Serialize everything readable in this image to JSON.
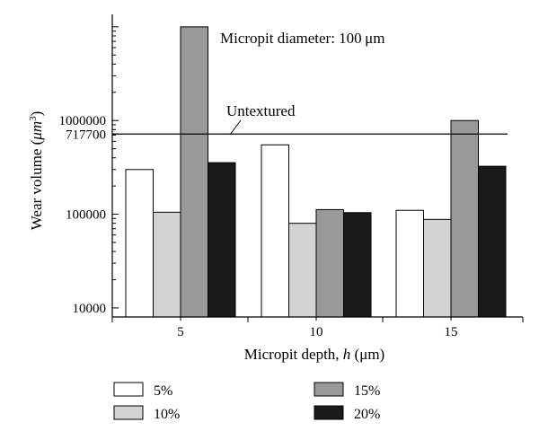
{
  "chart_data": {
    "type": "bar",
    "annotation": "Micropit diameter: 100 μm",
    "xlabel_main": "Micropit depth, ",
    "xlabel_var": "h",
    "xlabel_unit": " (μm)",
    "ylabel_main": "Wear volume (",
    "ylabel_mu": "μm",
    "ylabel_exp": "3",
    "ylabel_close": ")",
    "yscale": "log",
    "ylim": [
      8000,
      13000000
    ],
    "yticks": [
      {
        "value": 10000,
        "label": "10000"
      },
      {
        "value": 100000,
        "label": "100000"
      },
      {
        "value": 717700,
        "label": "717700"
      },
      {
        "value": 1000000,
        "label": "1000000"
      }
    ],
    "categories": [
      "5",
      "10",
      "15"
    ],
    "series": [
      {
        "name": "5%",
        "color": "#ffffff",
        "values": [
          300000,
          550000,
          110000
        ]
      },
      {
        "name": "10%",
        "color": "#d3d3d3",
        "values": [
          105000,
          80000,
          88000
        ]
      },
      {
        "name": "15%",
        "color": "#999999",
        "values": [
          10000000,
          112000,
          1000000
        ]
      },
      {
        "name": "20%",
        "color": "#1a1a1a",
        "values": [
          355000,
          104000,
          325000
        ]
      }
    ],
    "reference_line": {
      "label": "Untextured",
      "value": 717700
    },
    "legend_position": "bottom"
  }
}
